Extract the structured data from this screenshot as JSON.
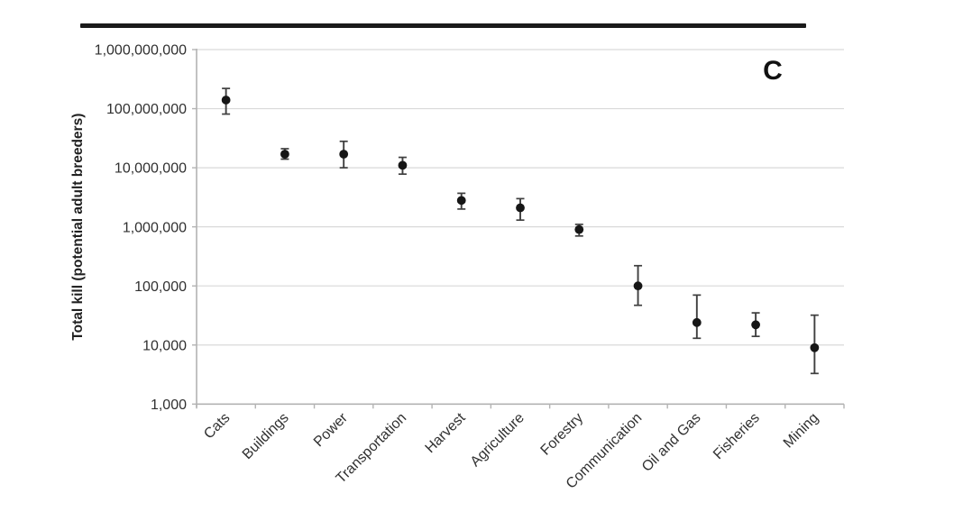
{
  "figure": {
    "panel_label": "C"
  },
  "chart_data": {
    "type": "scatter",
    "y_scale": "log",
    "title": "",
    "panel_label": "C",
    "xlabel": "",
    "ylabel": "Total kill (potential adult breeders)",
    "ylim": [
      1000,
      1000000000
    ],
    "grid": true,
    "legend": "none",
    "marker": "filled-circle-with-error-bars",
    "categories": [
      "Cats",
      "Buildings",
      "Power",
      "Transportation",
      "Harvest",
      "Agriculture",
      "Forestry",
      "Communication",
      "Oil and Gas",
      "Fisheries",
      "Mining"
    ],
    "series": [
      {
        "name": "Total kill",
        "values": [
          140000000,
          17000000,
          17000000,
          11000000,
          2800000,
          2100000,
          900000,
          100000,
          24000,
          22000,
          9000
        ],
        "error_low": [
          81000000,
          14000000,
          10000000,
          7800000,
          2000000,
          1300000,
          700000,
          47000,
          13000,
          14000,
          3300
        ],
        "error_high": [
          220000000,
          21000000,
          28000000,
          15000000,
          3700000,
          3000000,
          1100000,
          220000,
          70000,
          35000,
          32000
        ]
      }
    ],
    "yticks": [
      1000,
      10000,
      100000,
      1000000,
      10000000,
      100000000,
      1000000000
    ],
    "ytick_labels": [
      "1,000",
      "10,000",
      "100,000",
      "1,000,000",
      "10,000,000",
      "100,000,000",
      "1,000,000,000"
    ],
    "colors": {
      "marker": "#161616",
      "error_bar": "#3f3f3f",
      "gridline": "#d9d9d9",
      "axis": "#b3b3b3",
      "text": "#303030",
      "separator_bar": "#1a1a1a"
    }
  }
}
